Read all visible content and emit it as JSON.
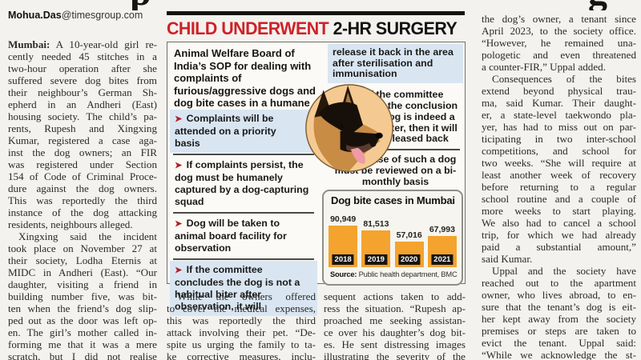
{
  "masthead": {
    "fragment1": "p",
    "fragment2": "g"
  },
  "byline": {
    "author": "Mohua.Das",
    "suffix": "@timesgroup.com"
  },
  "left_column": {
    "paragraphs": [
      {
        "indent": false,
        "complete": true,
        "lead": "Mumbai:",
        "lines": [
          " A 10-year-old girl re-",
          "cently needed 45 stitches in a",
          "two-hour operation after she",
          "suffered severe dog bites from",
          "their neighbour’s German Sh-",
          "epherd in an Andheri (East)",
          "housing society. The child’s pa-",
          "rents, Rupesh and Xingxing",
          "Kumar, registered a case aga-",
          "inst the dog owners; an FIR",
          "was registered under Section",
          "154 of Code of Criminal Proce-",
          "dure against the dog owners.",
          "This was reportedly the third",
          "instance of the dog attacking",
          "residents, neighbours alleged."
        ]
      },
      {
        "indent": true,
        "complete": false,
        "lines": [
          "Xingxing said the incident",
          "took place on November 27 at",
          "their society, Lodha Eternis at",
          "MIDC in Andheri (East). “Our",
          "daughter, visiting a friend in",
          "building number five, was bit-",
          "ten when the friend’s dog slip-",
          "ped out as the door was left op-",
          "en. The girl’s mother called in-",
          "forming me that it was a mere",
          "scratch, but I did not realise"
        ]
      }
    ]
  },
  "mid_column_1": {
    "paragraphs": [
      {
        "indent": true,
        "complete": false,
        "lines": [
          "While the owners offered",
          "to cover the medical expenses,",
          "this was reportedly the third",
          "attack involving their pet. “De-",
          "spite us urging the family to ta-",
          "ke corrective measures, inclu-"
        ]
      }
    ]
  },
  "mid_column_2": {
    "paragraphs": [
      {
        "indent": false,
        "complete": false,
        "lines": [
          "sequent actions taken to add-",
          "ress the situation. “Rupesh ap-",
          "proached me seeking assistan-",
          "ce over his daughter’s dog bit-",
          "es. He sent distressing images",
          "illustrating the severity of the"
        ]
      }
    ]
  },
  "right_column": {
    "paragraphs": [
      {
        "indent": false,
        "complete": true,
        "lines": [
          "the dog’s owner, a tenant since",
          "April 2023, to the society office.",
          "“However, he remained una-",
          "pologetic and even threatened",
          "a counter-FIR,” Uppal added."
        ]
      },
      {
        "indent": true,
        "complete": true,
        "lines": [
          "Consequences of the bites",
          "extend beyond physical trau-",
          "ma, said Kumar. Their daught-",
          "er, a state-level taekwondo pla-",
          "yer, has had to miss out on par-",
          "ticipating in two inter-school",
          "competitions, and school for",
          "two weeks. “She will require at",
          "least another week of recovery",
          "before returning to a regular",
          "school routine and a couple of",
          "more weeks to start playing.",
          "We also had to cancel a school",
          "trip, for which we had already",
          "paid a substantial amount,”",
          "said Kumar."
        ]
      },
      {
        "indent": true,
        "complete": false,
        "lines": [
          "Uppal and the society have",
          "reached out to the apartment",
          "owner, who lives abroad, to en-",
          "sure that the tenant’s dog is eit-",
          "her kept away from the society",
          "premises or steps are taken to",
          "evict the tenant. Uppal said:",
          "“While we acknowledge the st-"
        ]
      }
    ]
  },
  "infographic": {
    "title": {
      "red": "CHILD UNDERWENT",
      "black": " 2-HR SURGERY"
    },
    "arrow_glyph": "➤",
    "intro": "Animal Welfare Board of India’s SOP for dealing with complaints of furious/aggressive dogs and dog bite cases in a humane manner",
    "illustration": "german-shepherd-head-in-circle",
    "left_items": [
      {
        "text": "Complaints will be attended on a priority basis",
        "highlight": true
      },
      {
        "text": "If complaints persist, the dog must be humanely captured by a dog-capturing squad",
        "highlight": false
      },
      {
        "text": "Dog will be taken to animal board facility for observation",
        "highlight": false
      },
      {
        "text": "If the committee concludes the dog is not a habitual biter after observation, it will",
        "highlight": true
      }
    ],
    "right_items": [
      {
        "text": "release it back in the area after sterilisation and immunisation",
        "highlight": true,
        "arrow": false
      },
      {
        "text": "If the committee comes to the conclusion that the dog is indeed a habitual biter, then it will not be released back",
        "highlight": false,
        "arrow": true
      },
      {
        "text": "The case of such a dog must be reviewed on a bi-monthly basis",
        "highlight": false,
        "arrow": true
      }
    ],
    "colors": {
      "title_red": "#cf2127",
      "arrow_red": "#b01f25",
      "highlight_blue": "#d9e6f2"
    }
  },
  "chart_data": {
    "type": "bar",
    "title": "Dog bite cases in Mumbai",
    "categories": [
      "2018",
      "2019",
      "2020",
      "2021"
    ],
    "values": [
      90949,
      81513,
      57016,
      67993
    ],
    "value_labels": [
      "90,949",
      "81,513",
      "57,016",
      "67,993"
    ],
    "xlabel": "",
    "ylabel": "",
    "ylim": [
      0,
      100000
    ],
    "grid": false,
    "legend": "none",
    "bar_color": "#f4a32e",
    "year_label_bg": "#181512",
    "source_bold": "Source:",
    "source_rest": " Public health department, BMC"
  }
}
